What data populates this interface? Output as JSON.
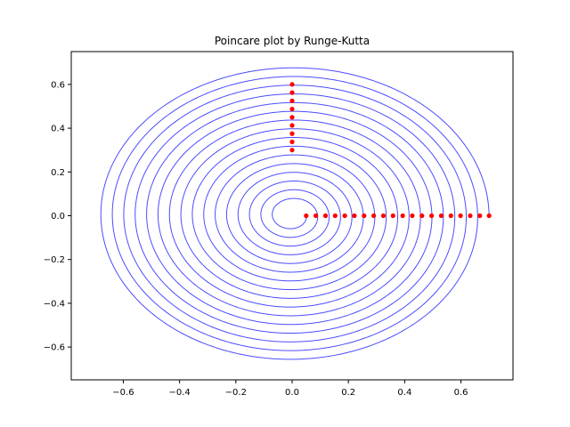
{
  "chart_data": {
    "type": "scatter",
    "title": "Poincare plot by Runge-Kutta",
    "xlabel": "",
    "ylabel": "",
    "xlim": [
      -0.785,
      0.785
    ],
    "ylim": [
      -0.75,
      0.75
    ],
    "xticks": [
      -0.6,
      -0.4,
      -0.2,
      0.0,
      0.2,
      0.4,
      0.6
    ],
    "yticks": [
      -0.6,
      -0.4,
      -0.2,
      0.0,
      0.2,
      0.4,
      0.6
    ],
    "xtick_labels": [
      "−0.6",
      "−0.4",
      "−0.2",
      "0.0",
      "0.2",
      "0.4",
      "0.6"
    ],
    "ytick_labels": [
      "−0.6",
      "−0.4",
      "−0.2",
      "0.0",
      "0.2",
      "0.4",
      "0.6"
    ],
    "grid": false,
    "trajectory_color": "#0000ff",
    "marker_color": "#ff0000",
    "trajectory": {
      "start": [
        0.7,
        0.0
      ],
      "end": [
        0.05,
        0.0
      ],
      "x_amplitude_ratio": 1.0,
      "y_amplitude_ratio": 0.98,
      "turns": 16,
      "samples_per_turn": 360
    },
    "red_points_horizontal": {
      "x": [
        0.05,
        0.0843,
        0.1186,
        0.1529,
        0.1871,
        0.2214,
        0.2557,
        0.29,
        0.3243,
        0.3586,
        0.3929,
        0.4271,
        0.4614,
        0.4957,
        0.53,
        0.5643,
        0.5986,
        0.6329,
        0.6671,
        0.7
      ],
      "y": [
        0,
        0,
        0,
        0,
        0,
        0,
        0,
        0,
        0,
        0,
        0,
        0,
        0,
        0,
        0,
        0,
        0,
        0,
        0,
        0
      ]
    },
    "red_points_vertical": {
      "x": [
        0,
        0,
        0,
        0,
        0,
        0,
        0,
        0,
        0
      ],
      "y": [
        0.3,
        0.3375,
        0.375,
        0.4125,
        0.45,
        0.4875,
        0.525,
        0.5625,
        0.6
      ]
    }
  }
}
